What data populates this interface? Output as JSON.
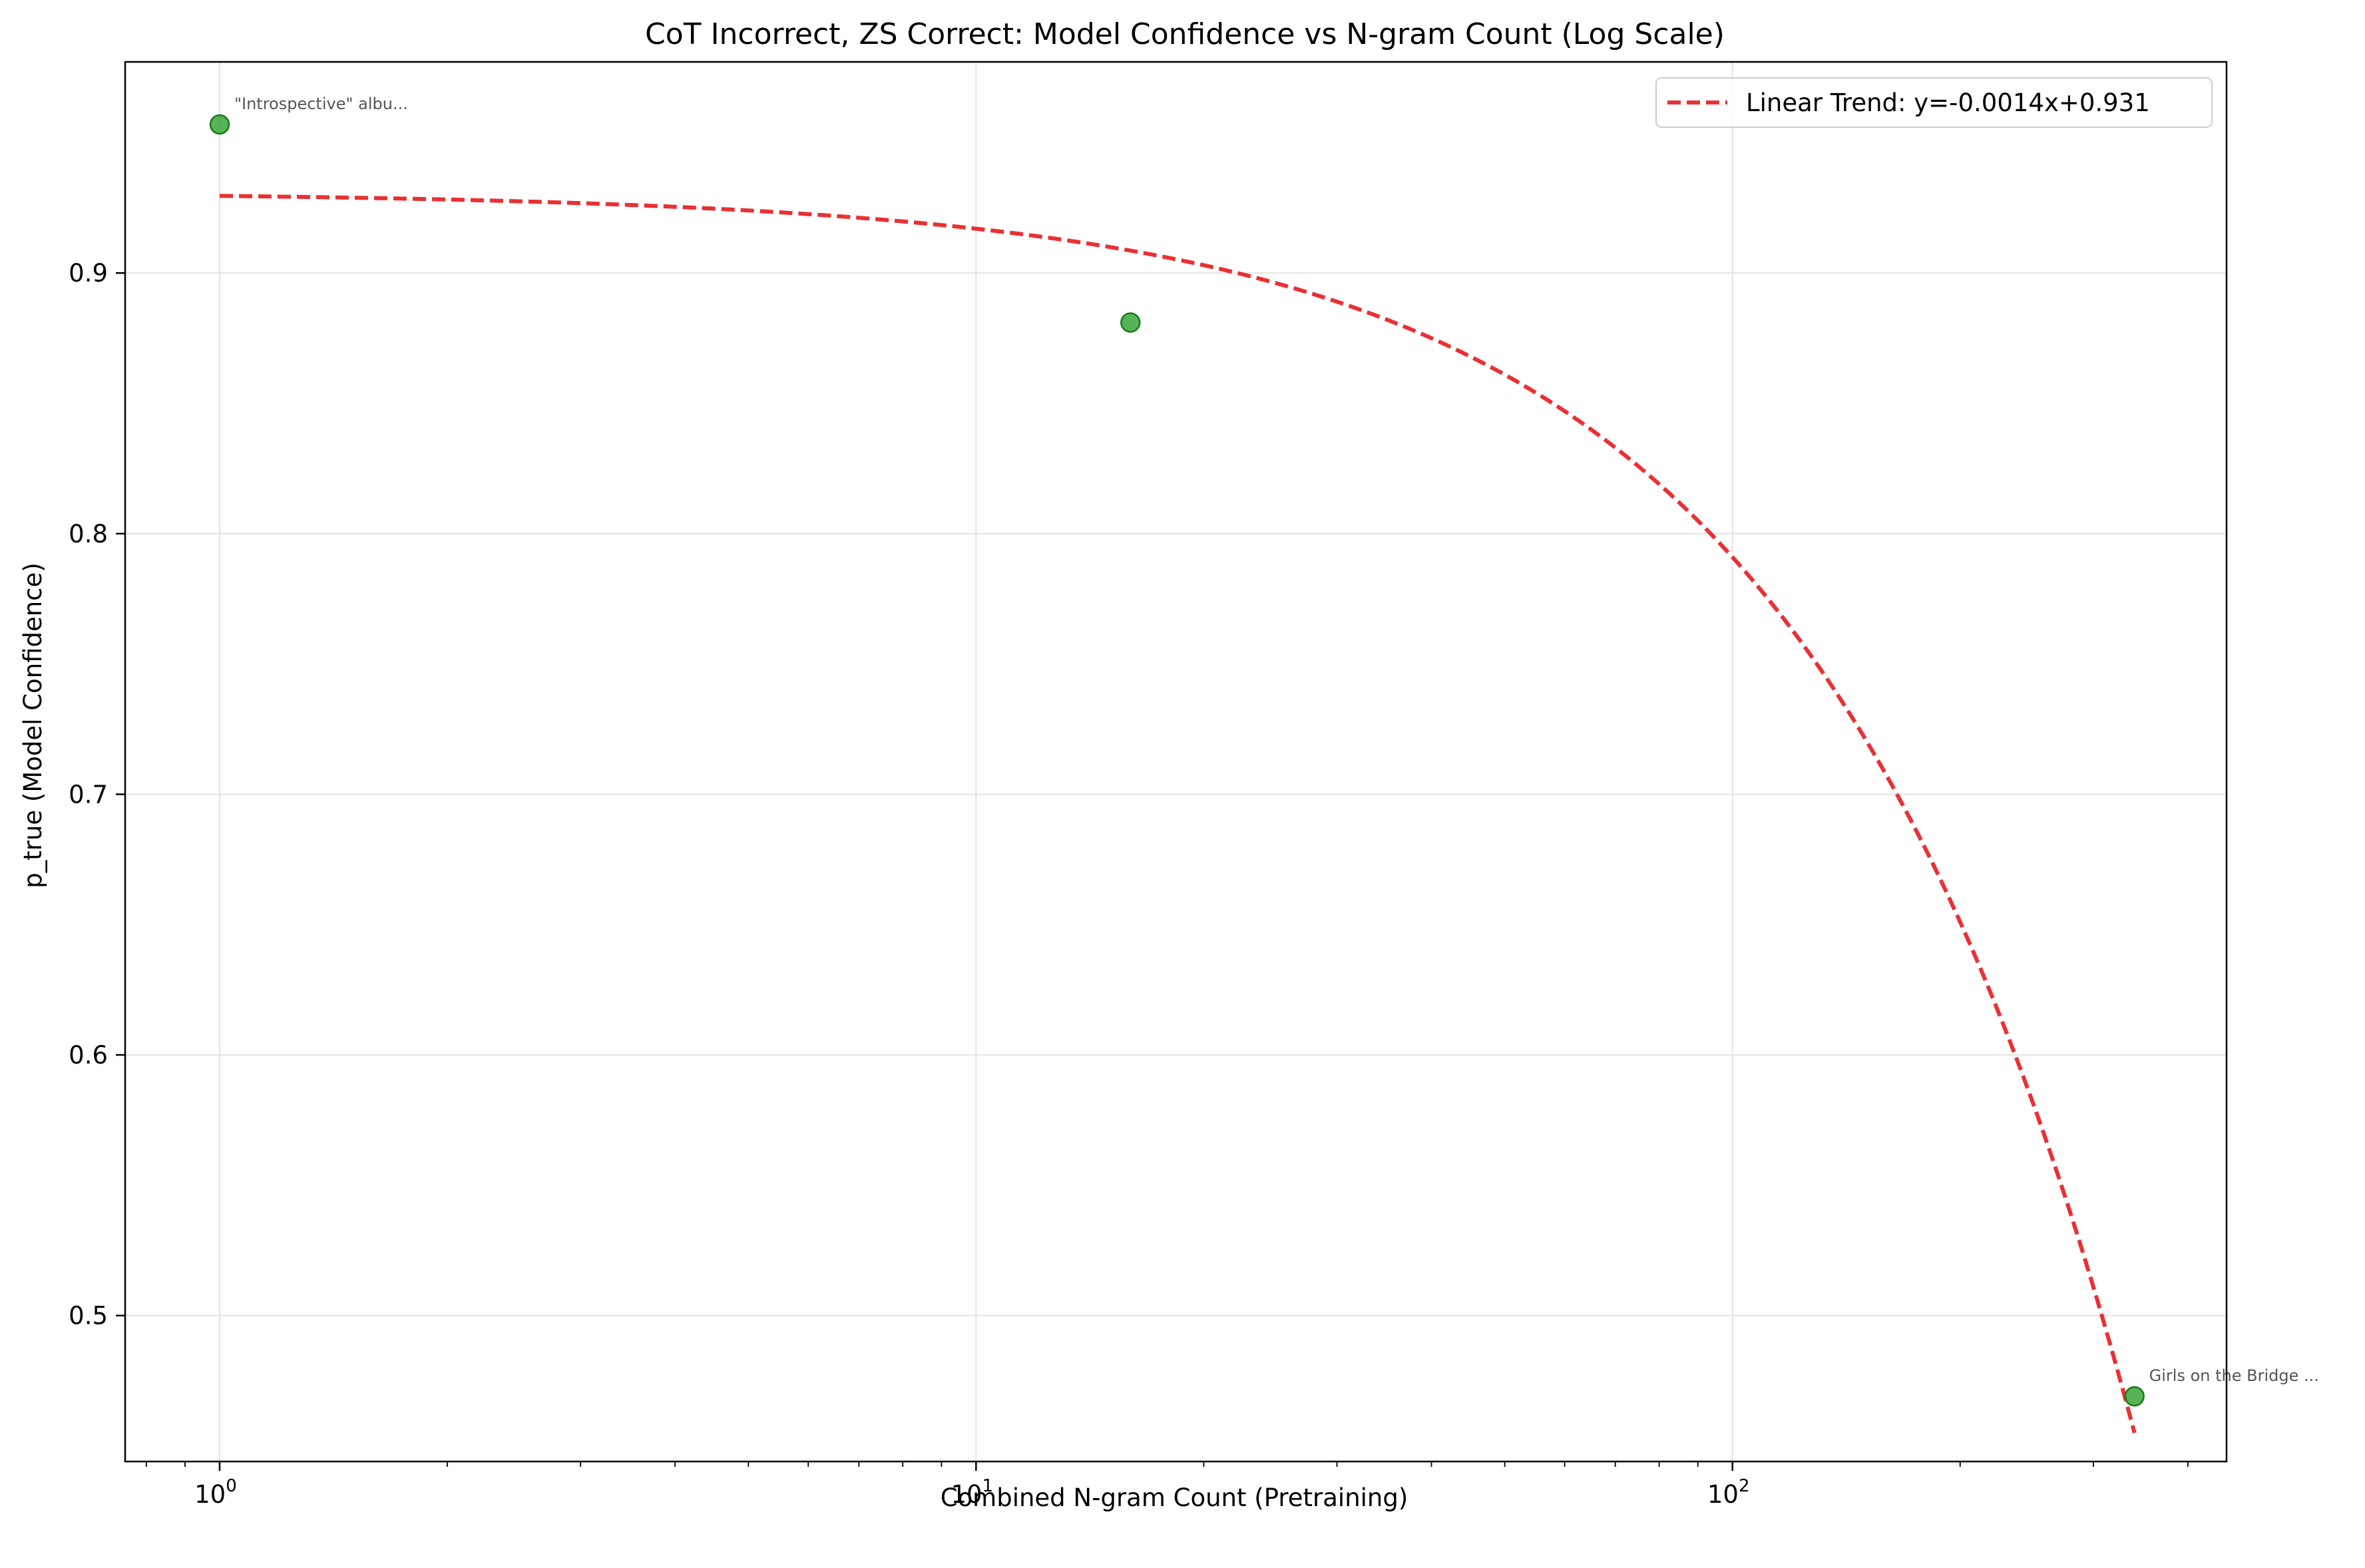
{
  "chart_data": {
    "type": "scatter",
    "title": "CoT Incorrect, ZS Correct: Model Confidence vs N-gram Count (Log Scale)",
    "xlabel": "Combined N-gram Count (Pretraining)",
    "ylabel": "p_true (Model Confidence)",
    "xscale": "log",
    "xlim": [
      0.75,
      450
    ],
    "ylim": [
      0.444,
      0.981
    ],
    "grid": true,
    "legend_position": "top-right",
    "x_ticks": [
      {
        "value": 1,
        "base": "10",
        "exp": "0"
      },
      {
        "value": 10,
        "base": "10",
        "exp": "1"
      },
      {
        "value": 100,
        "base": "10",
        "exp": "2"
      }
    ],
    "y_ticks": [
      {
        "value": 0.5,
        "label": "0.5"
      },
      {
        "value": 0.6,
        "label": "0.6"
      },
      {
        "value": 0.7,
        "label": "0.7"
      },
      {
        "value": 0.8,
        "label": "0.8"
      },
      {
        "value": 0.9,
        "label": "0.9"
      }
    ],
    "points": [
      {
        "x": 1,
        "y": 0.957,
        "label": "\"Introspective\" albu..."
      },
      {
        "x": 16,
        "y": 0.881,
        "label": ""
      },
      {
        "x": 340,
        "y": 0.469,
        "label": "Girls on the Bridge ..."
      }
    ],
    "trend": {
      "name": "Linear Trend: y=-0.0014x+0.931",
      "slope": -0.0014,
      "intercept": 0.931,
      "x_range": [
        1,
        340
      ]
    },
    "colors": {
      "points": "#2ca02c",
      "trend": "#e8191e",
      "grid": "#e3e3e3",
      "annotation": "#555555"
    }
  }
}
